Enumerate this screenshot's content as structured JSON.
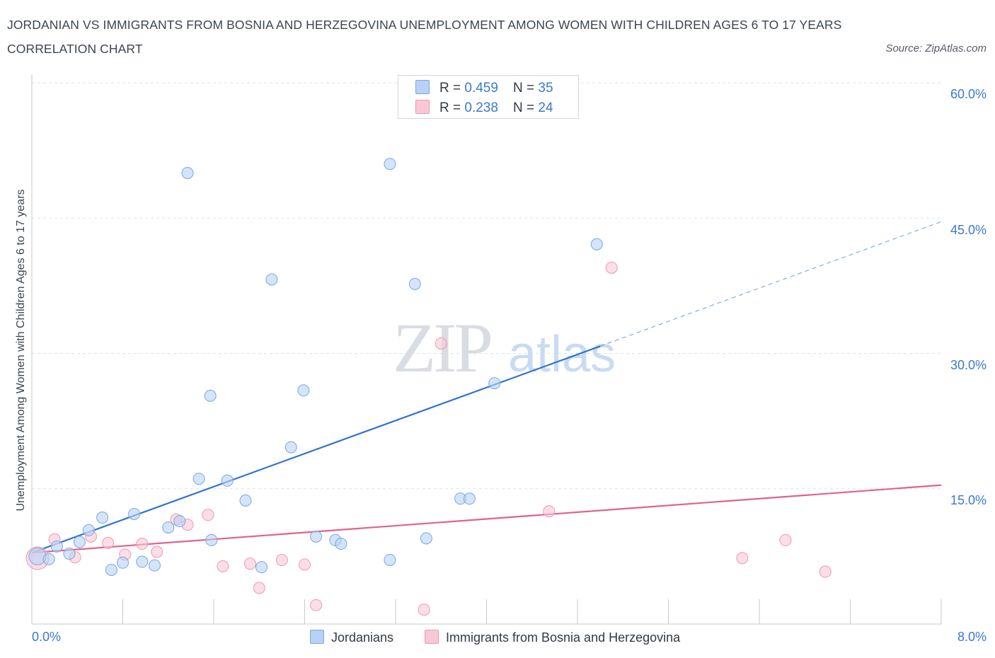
{
  "header": {
    "title": "JORDANIAN VS IMMIGRANTS FROM BOSNIA AND HERZEGOVINA UNEMPLOYMENT AMONG WOMEN WITH CHILDREN AGES 6 TO 17 YEARS CORRELATION CHART",
    "source": "Source: ZipAtlas.com"
  },
  "watermark": {
    "zip": "ZIP",
    "atlas": "atlas"
  },
  "legend": {
    "rows": [
      {
        "r_label": "R = ",
        "r_value": "0.459",
        "n_label": "N = ",
        "n_value": "35"
      },
      {
        "r_label": "R = ",
        "r_value": "0.238",
        "n_label": "N = ",
        "n_value": "24"
      }
    ]
  },
  "colors": {
    "jordanians_fill": "#b8d2f5",
    "jordanians_stroke": "#7aa7e0",
    "jordanians_line": "#2f74d0",
    "bosnia_fill": "#f8c8d6",
    "bosnia_stroke": "#ef97b2",
    "bosnia_line": "#e0628f",
    "tick_text": "#3b78d0",
    "grid": "#dde2e8"
  },
  "chart_data": {
    "type": "scatter",
    "title": "JORDANIAN VS IMMIGRANTS FROM BOSNIA AND HERZEGOVINA UNEMPLOYMENT AMONG WOMEN WITH CHILDREN AGES 6 TO 17 YEARS CORRELATION CHART",
    "xlabel": "",
    "ylabel": "Unemployment Among Women with Children Ages 6 to 17 years",
    "xlim": [
      0,
      8
    ],
    "ylim": [
      0,
      60
    ],
    "x_tick_labels": [
      "0.0%",
      "8.0%"
    ],
    "y_tick_labels": [
      "15.0%",
      "30.0%",
      "45.0%",
      "60.0%"
    ],
    "y_ticks": [
      15,
      30,
      45,
      60
    ],
    "grid": true,
    "legend_position": "top-center",
    "series": [
      {
        "name": "Jordanians",
        "points": [
          [
            0.05,
            7.5
          ],
          [
            0.15,
            7.2
          ],
          [
            0.22,
            8.6
          ],
          [
            0.33,
            7.8
          ],
          [
            0.42,
            9.1
          ],
          [
            0.5,
            10.4
          ],
          [
            0.62,
            11.8
          ],
          [
            0.7,
            6.0
          ],
          [
            0.8,
            6.8
          ],
          [
            0.9,
            12.2
          ],
          [
            0.97,
            6.9
          ],
          [
            1.08,
            6.5
          ],
          [
            1.2,
            10.7
          ],
          [
            1.3,
            11.4
          ],
          [
            1.37,
            50.0
          ],
          [
            1.47,
            16.1
          ],
          [
            1.57,
            25.3
          ],
          [
            1.58,
            9.3
          ],
          [
            1.72,
            15.9
          ],
          [
            1.88,
            13.7
          ],
          [
            2.02,
            6.3
          ],
          [
            2.11,
            38.2
          ],
          [
            2.28,
            19.6
          ],
          [
            2.39,
            25.9
          ],
          [
            2.5,
            9.7
          ],
          [
            2.67,
            9.3
          ],
          [
            2.72,
            8.9
          ],
          [
            3.15,
            51.0
          ],
          [
            3.15,
            7.1
          ],
          [
            3.37,
            37.7
          ],
          [
            3.47,
            9.5
          ],
          [
            3.77,
            13.9
          ],
          [
            3.85,
            13.9
          ],
          [
            4.07,
            26.7
          ],
          [
            4.97,
            42.1
          ]
        ],
        "trend": {
          "x": [
            0.0,
            5.0
          ],
          "y": [
            7.9,
            30.8
          ],
          "dashed_extension": {
            "x": [
              5.0,
              8.0
            ],
            "y": [
              30.8,
              44.6
            ]
          }
        }
      },
      {
        "name": "Immigrants from Bosnia and Herzegovina",
        "points": [
          [
            0.05,
            7.3
          ],
          [
            0.2,
            9.4
          ],
          [
            0.38,
            7.4
          ],
          [
            0.52,
            9.7
          ],
          [
            0.67,
            9.0
          ],
          [
            0.82,
            7.7
          ],
          [
            0.97,
            8.9
          ],
          [
            1.1,
            8.0
          ],
          [
            1.27,
            11.6
          ],
          [
            1.37,
            11.0
          ],
          [
            1.55,
            12.1
          ],
          [
            1.68,
            6.4
          ],
          [
            1.92,
            6.7
          ],
          [
            2.0,
            4.0
          ],
          [
            2.2,
            7.1
          ],
          [
            2.4,
            6.6
          ],
          [
            2.5,
            2.1
          ],
          [
            3.45,
            1.6
          ],
          [
            3.6,
            31.1
          ],
          [
            4.55,
            12.5
          ],
          [
            5.1,
            39.5
          ],
          [
            6.25,
            7.3
          ],
          [
            6.63,
            9.3
          ],
          [
            6.98,
            5.8
          ]
        ],
        "trend": {
          "x": [
            0.0,
            8.0
          ],
          "y": [
            7.9,
            15.4
          ]
        }
      }
    ]
  }
}
